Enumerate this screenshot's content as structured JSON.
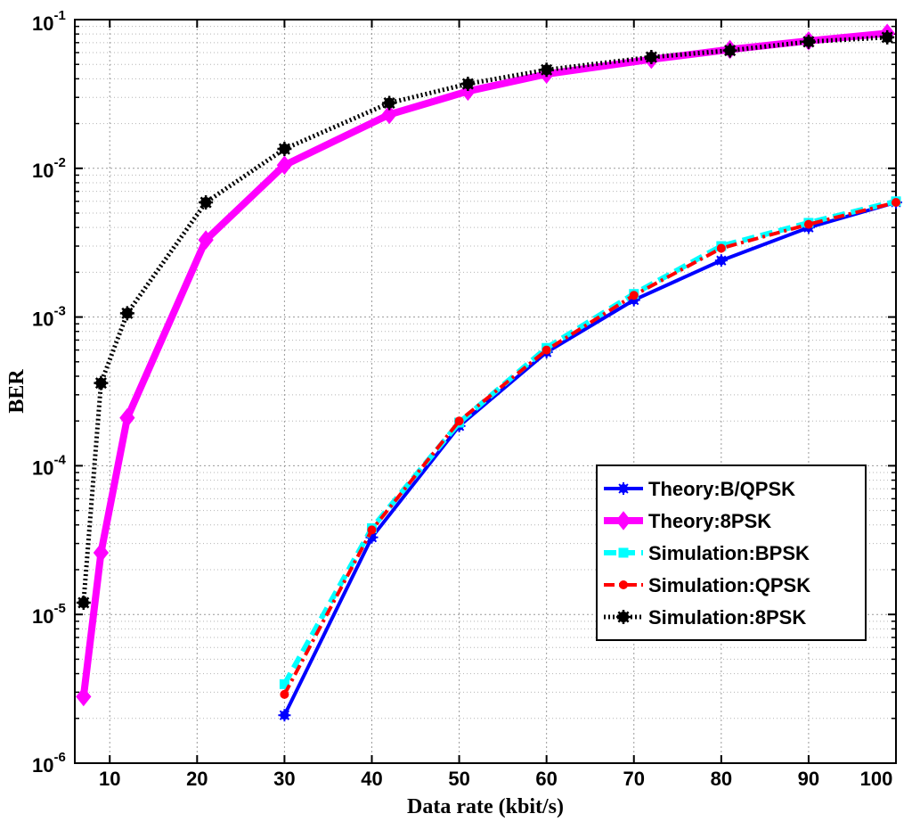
{
  "chart_data": {
    "type": "line",
    "title": "",
    "xlabel": "Data rate (kbit/s)",
    "ylabel": "BER",
    "xlim": [
      6,
      100
    ],
    "ylim": [
      1e-06,
      0.1
    ],
    "yscale": "log",
    "grid": true,
    "x_ticks": [
      "10",
      "20",
      "30",
      "40",
      "50",
      "60",
      "70",
      "80",
      "90",
      "100"
    ],
    "y_ticks": [
      {
        "base": "10",
        "exp": "-6"
      },
      {
        "base": "10",
        "exp": "-5"
      },
      {
        "base": "10",
        "exp": "-4"
      },
      {
        "base": "10",
        "exp": "-3"
      },
      {
        "base": "10",
        "exp": "-2"
      },
      {
        "base": "10",
        "exp": "-1"
      }
    ],
    "legend_position": "bottom-right",
    "series": [
      {
        "name": "Theory:B/QPSK",
        "color": "#0000ff",
        "style": "solid",
        "marker": "star",
        "points": [
          [
            30,
            2.1e-06
          ],
          [
            40,
            3.3e-05
          ],
          [
            50,
            0.000185
          ],
          [
            60,
            0.00058
          ],
          [
            70,
            0.0013
          ],
          [
            80,
            0.0024
          ],
          [
            90,
            0.004
          ],
          [
            100,
            0.0059
          ]
        ]
      },
      {
        "name": "Theory:8PSK",
        "color": "#ff00ff",
        "style": "solid-thick",
        "marker": "diamond",
        "points": [
          [
            7,
            2.8e-06
          ],
          [
            9,
            2.6e-05
          ],
          [
            12,
            0.00021
          ],
          [
            21,
            0.0033
          ],
          [
            30,
            0.0105
          ],
          [
            42,
            0.023
          ],
          [
            51,
            0.033
          ],
          [
            60,
            0.043
          ],
          [
            72,
            0.054
          ],
          [
            81,
            0.063
          ],
          [
            90,
            0.072
          ],
          [
            99,
            0.081
          ]
        ]
      },
      {
        "name": "Simulation:BPSK",
        "color": "#00ffff",
        "style": "dashed",
        "marker": "square",
        "points": [
          [
            30,
            3.4e-06
          ],
          [
            40,
            3.8e-05
          ],
          [
            50,
            0.000195
          ],
          [
            60,
            0.00062
          ],
          [
            70,
            0.00143
          ],
          [
            80,
            0.003
          ],
          [
            90,
            0.0043
          ],
          [
            100,
            0.006
          ]
        ]
      },
      {
        "name": "Simulation:QPSK",
        "color": "#ff0000",
        "style": "dashdot",
        "marker": "dot",
        "points": [
          [
            30,
            2.9e-06
          ],
          [
            40,
            3.7e-05
          ],
          [
            50,
            0.0002
          ],
          [
            60,
            0.0006
          ],
          [
            70,
            0.0014
          ],
          [
            80,
            0.0029
          ],
          [
            90,
            0.0042
          ],
          [
            100,
            0.0059
          ]
        ]
      },
      {
        "name": "Simulation:8PSK",
        "color": "#000000",
        "style": "dotted",
        "marker": "asterisk",
        "points": [
          [
            7,
            1.2e-05
          ],
          [
            9,
            0.00036
          ],
          [
            12,
            0.00106
          ],
          [
            21,
            0.0059
          ],
          [
            30,
            0.0135
          ],
          [
            42,
            0.0275
          ],
          [
            51,
            0.037
          ],
          [
            60,
            0.046
          ],
          [
            72,
            0.056
          ],
          [
            81,
            0.062
          ],
          [
            90,
            0.071
          ],
          [
            99,
            0.076
          ]
        ]
      }
    ]
  }
}
